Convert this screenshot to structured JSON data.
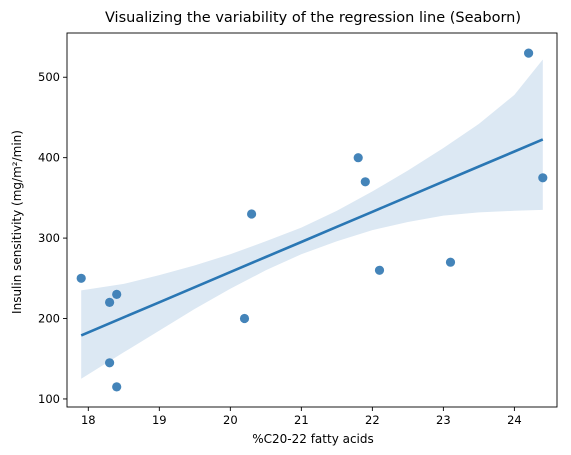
{
  "chart_data": {
    "type": "scatter",
    "title": "Visualizing the variability of the regression line (Seaborn)",
    "xlabel": "%C20-22 fatty acids",
    "ylabel": "Insulin sensitivity (mg/m²/min)",
    "xlim": [
      17.7,
      24.6
    ],
    "ylim": [
      90,
      555
    ],
    "xticks": [
      18,
      19,
      20,
      21,
      22,
      23,
      24
    ],
    "yticks": [
      100,
      200,
      300,
      400,
      500
    ],
    "grid": false,
    "legend": "none",
    "points": [
      {
        "x": 17.9,
        "y": 250
      },
      {
        "x": 18.3,
        "y": 220
      },
      {
        "x": 18.4,
        "y": 230
      },
      {
        "x": 18.3,
        "y": 145
      },
      {
        "x": 18.4,
        "y": 115
      },
      {
        "x": 20.2,
        "y": 200
      },
      {
        "x": 20.3,
        "y": 330
      },
      {
        "x": 21.8,
        "y": 400
      },
      {
        "x": 21.9,
        "y": 370
      },
      {
        "x": 22.1,
        "y": 260
      },
      {
        "x": 23.1,
        "y": 270
      },
      {
        "x": 24.2,
        "y": 530
      },
      {
        "x": 24.4,
        "y": 375
      }
    ],
    "regression": {
      "x": [
        17.9,
        18.5,
        19.0,
        19.5,
        20.0,
        20.5,
        21.0,
        21.5,
        22.0,
        22.5,
        23.0,
        23.5,
        24.0,
        24.4
      ],
      "y": [
        179,
        201.5,
        220.2,
        239,
        257.7,
        276.5,
        295.2,
        314,
        332.7,
        351.5,
        370.2,
        389,
        407.7,
        422.7
      ],
      "ci_lower": [
        125,
        158,
        185,
        212,
        237,
        260,
        280,
        296,
        310,
        320,
        328,
        332,
        334,
        335
      ],
      "ci_upper": [
        235,
        243,
        254,
        266,
        280,
        296,
        313,
        334,
        358,
        384,
        412,
        442,
        478,
        522
      ]
    },
    "colors": {
      "points": "#3a7db5",
      "line": "#2a77b4",
      "band": "#dce8f3"
    }
  }
}
